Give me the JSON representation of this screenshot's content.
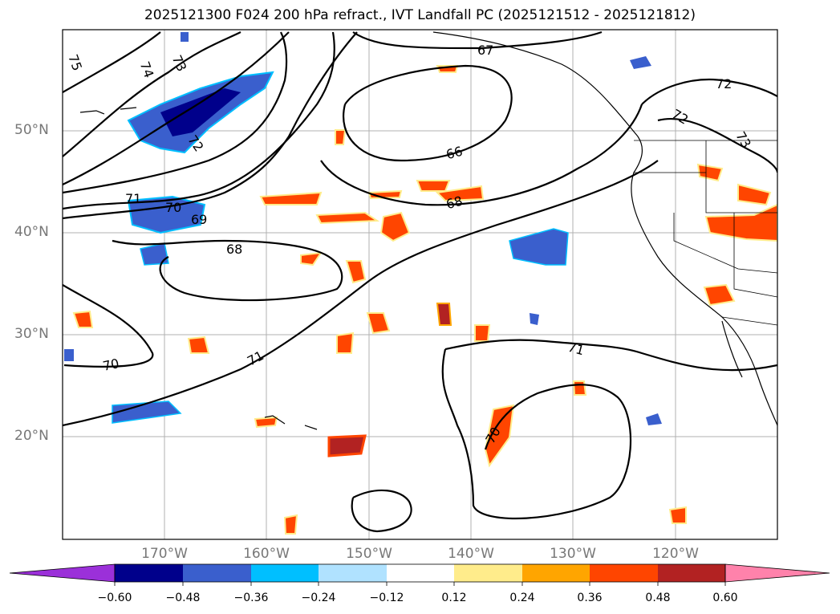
{
  "title": "2025121300 F024 200 hPa refract., IVT Landfall PC (2025121512 - 2025121812)",
  "map": {
    "lat_ticks": [
      {
        "value": 50,
        "label": "50°N"
      },
      {
        "value": 40,
        "label": "40°N"
      },
      {
        "value": 30,
        "label": "30°N"
      },
      {
        "value": 20,
        "label": "20°N"
      }
    ],
    "lon_ticks": [
      {
        "value": -170,
        "label": "170°W"
      },
      {
        "value": -160,
        "label": "160°W"
      },
      {
        "value": -150,
        "label": "150°W"
      },
      {
        "value": -140,
        "label": "140°W"
      },
      {
        "value": -130,
        "label": "130°W"
      },
      {
        "value": -120,
        "label": "120°W"
      }
    ],
    "extent": {
      "lon": [
        -180,
        -110
      ],
      "lat": [
        10,
        60
      ]
    },
    "grid": true,
    "contour_labels": [
      "75",
      "74",
      "73",
      "72",
      "71",
      "70",
      "69",
      "68",
      "67",
      "66",
      "68",
      "71",
      "70",
      "71",
      "70",
      "72",
      "72",
      "73"
    ]
  },
  "colorbar": {
    "tick_labels": [
      "−0.60",
      "−0.48",
      "−0.36",
      "−0.24",
      "−0.12",
      "0.12",
      "0.24",
      "0.36",
      "0.48",
      "0.60"
    ],
    "colors": [
      "#9b30d9",
      "#00008b",
      "#3a5fcd",
      "#00bfff",
      "#b0e2ff",
      "#ffffff",
      "#ffec8b",
      "#ffa500",
      "#ff4500",
      "#b22222",
      "#ff82ab"
    ]
  }
}
